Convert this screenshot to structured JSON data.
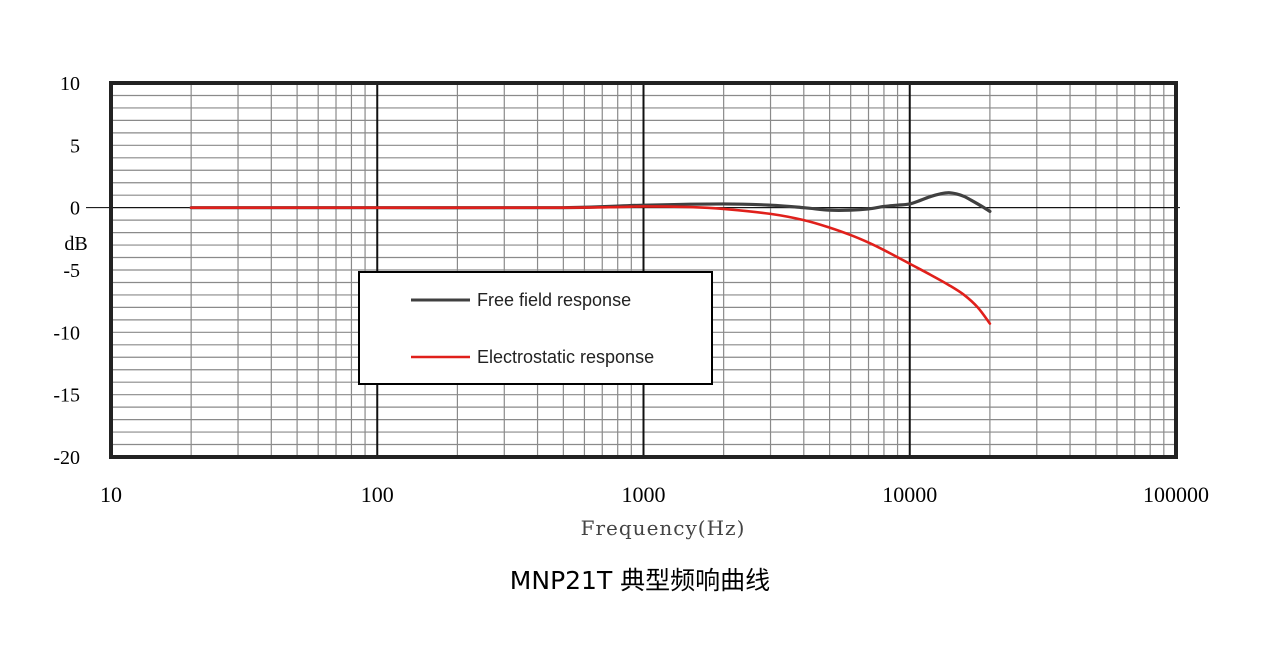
{
  "caption": "MNP21T 典型频响曲线",
  "chart_data": {
    "type": "line",
    "xscale": "log",
    "xlim": [
      10,
      100000
    ],
    "ylim": [
      -20,
      10
    ],
    "xticks": [
      10,
      100,
      1000,
      10000,
      100000
    ],
    "xtick_labels": [
      "10",
      "100",
      "1000",
      "10000",
      "100000"
    ],
    "yticks": [
      10,
      5,
      0,
      -5,
      -10,
      -15,
      -20
    ],
    "ytick_labels": [
      "10",
      "5",
      "0",
      "-5",
      "-10",
      "-15",
      "-20"
    ],
    "xlabel": "Frequency(Hz)",
    "ylabel": "dB",
    "grid": true,
    "legend_position": "center-left",
    "series": [
      {
        "name": "Free field response",
        "color": "#404040",
        "x": [
          20,
          100,
          500,
          1000,
          2000,
          3000,
          4000,
          5000,
          6000,
          7000,
          8000,
          9000,
          10000,
          11000,
          12000,
          13000,
          14000,
          15000,
          16000,
          17000,
          18000,
          19000,
          20000
        ],
        "y": [
          0,
          0,
          0,
          0.2,
          0.3,
          0.2,
          0,
          -0.2,
          -0.2,
          -0.1,
          0.1,
          0.2,
          0.3,
          0.6,
          0.9,
          1.1,
          1.2,
          1.1,
          0.9,
          0.6,
          0.3,
          0,
          -0.3
        ]
      },
      {
        "name": "Electrostatic response",
        "color": "#e0201b",
        "x": [
          20,
          100,
          500,
          800,
          1000,
          1500,
          2000,
          3000,
          4000,
          5000,
          6000,
          7000,
          8000,
          10000,
          12000,
          14000,
          16000,
          18000,
          20000
        ],
        "y": [
          0,
          0,
          0,
          0.05,
          0.1,
          0.05,
          -0.1,
          -0.5,
          -1.0,
          -1.6,
          -2.2,
          -2.8,
          -3.4,
          -4.5,
          -5.4,
          -6.2,
          -7.0,
          -8.0,
          -9.3
        ]
      }
    ]
  }
}
